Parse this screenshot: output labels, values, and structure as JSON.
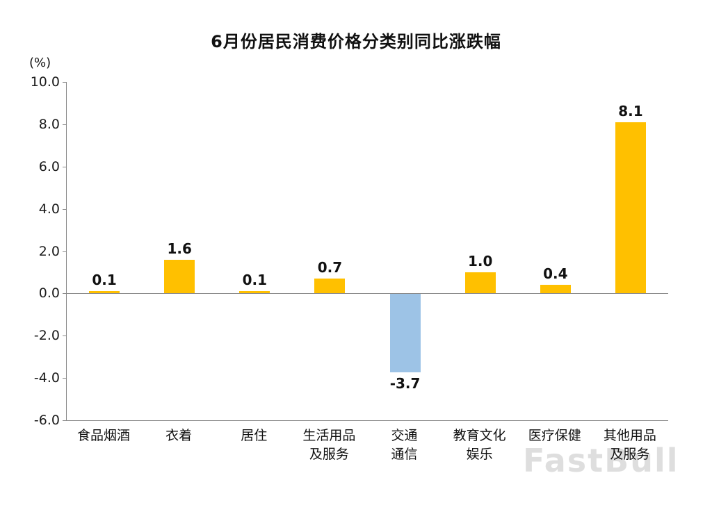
{
  "title": "6月份居民消费价格分类别同比涨跌幅",
  "y_axis_unit": "(%)",
  "watermark": "FastBull",
  "colors": {
    "positive_bar": "#FFC000",
    "negative_bar": "#9DC3E6",
    "axis": "#8A8A8A",
    "text": "#111111"
  },
  "chart_data": {
    "type": "bar",
    "title": "6月份居民消费价格分类别同比涨跌幅",
    "ylabel": "(%)",
    "xlabel": "",
    "ylim": [
      -6.0,
      10.0
    ],
    "grid": false,
    "legend": false,
    "categories": [
      "食品烟酒",
      "衣着",
      "居住",
      "生活用品\n及服务",
      "交通\n通信",
      "教育文化\n娱乐",
      "医疗保健",
      "其他用品\n及服务"
    ],
    "values": [
      0.1,
      1.6,
      0.1,
      0.7,
      -3.7,
      1.0,
      0.4,
      8.1
    ],
    "value_labels": [
      "0.1",
      "1.6",
      "0.1",
      "0.7",
      "-3.7",
      "1.0",
      "0.4",
      "8.1"
    ],
    "y_ticks": [
      10.0,
      8.0,
      6.0,
      4.0,
      2.0,
      0.0,
      -2.0,
      -4.0,
      -6.0
    ],
    "y_tick_labels": [
      "10.0",
      "8.0",
      "6.0",
      "4.0",
      "2.0",
      "0.0",
      "-2.0",
      "-4.0",
      "-6.0"
    ],
    "bar_color_positive": "#FFC000",
    "bar_color_negative": "#9DC3E6"
  }
}
